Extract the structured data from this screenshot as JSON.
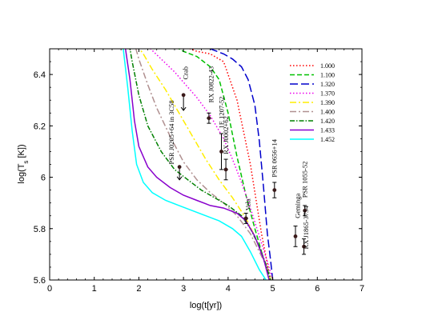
{
  "chart_data": {
    "type": "line",
    "xlabel": "log(t[yr])",
    "ylabel": "log(T_s [K])",
    "ylabel_main": "log(T",
    "ylabel_sub": "s",
    "ylabel_tail": " [K])",
    "xlim": [
      0,
      7
    ],
    "ylim": [
      5.6,
      6.5
    ],
    "xticks": [
      "0",
      "1",
      "2",
      "3",
      "4",
      "5",
      "6",
      "7"
    ],
    "yticks": [
      "5.6",
      "5.8",
      "6",
      "6.2",
      "6.4"
    ],
    "grid": false,
    "legend_position": "top-right",
    "series": [
      {
        "name": "1.000",
        "color": "#ff0000",
        "dash": "1.5,2.5",
        "x": [
          1.93,
          2.2,
          2.5,
          2.8,
          3.0,
          3.3,
          3.6,
          3.9,
          4.2,
          4.5,
          4.75,
          4.95
        ],
        "y": [
          6.58,
          6.56,
          6.54,
          6.52,
          6.51,
          6.49,
          6.48,
          6.45,
          6.3,
          6.05,
          5.78,
          5.6
        ]
      },
      {
        "name": "1.100",
        "color": "#00c000",
        "dash": "6,3",
        "x": [
          1.93,
          2.2,
          2.5,
          2.8,
          3.0,
          3.3,
          3.6,
          3.8,
          4.0,
          4.2,
          4.4,
          4.6,
          4.8,
          4.95
        ],
        "y": [
          6.57,
          6.55,
          6.53,
          6.51,
          6.49,
          6.47,
          6.43,
          6.38,
          6.25,
          6.08,
          5.93,
          5.8,
          5.68,
          5.6
        ]
      },
      {
        "name": "1.320",
        "color": "#0000cc",
        "dash": "10,4",
        "x": [
          1.93,
          2.4,
          2.8,
          3.2,
          3.6,
          3.9,
          4.1,
          4.3,
          4.45,
          4.6,
          4.7,
          4.8,
          4.88,
          4.95,
          5.0
        ],
        "y": [
          6.6,
          6.57,
          6.55,
          6.53,
          6.5,
          6.48,
          6.46,
          6.43,
          6.38,
          6.28,
          6.14,
          5.95,
          5.78,
          5.68,
          5.6
        ]
      },
      {
        "name": "1.370",
        "color": "#ee00ee",
        "dash": "1.5,2.5",
        "x": [
          1.93,
          2.2,
          2.5,
          2.8,
          3.0,
          3.3,
          3.6,
          3.9,
          4.1,
          4.3,
          4.5,
          4.7,
          4.9,
          5.0
        ],
        "y": [
          6.55,
          6.51,
          6.46,
          6.41,
          6.37,
          6.31,
          6.24,
          6.15,
          6.07,
          5.98,
          5.88,
          5.77,
          5.66,
          5.6
        ]
      },
      {
        "name": "1.390",
        "color": "#ffee00",
        "dash": "8,3,2,3",
        "x": [
          1.93,
          2.1,
          2.3,
          2.6,
          2.9,
          3.2,
          3.5,
          3.8,
          4.1,
          4.4,
          4.6,
          4.8,
          4.95
        ],
        "y": [
          6.52,
          6.48,
          6.42,
          6.34,
          6.25,
          6.16,
          6.07,
          5.99,
          5.92,
          5.84,
          5.77,
          5.68,
          5.6
        ]
      },
      {
        "name": "1.400",
        "color": "#b09090",
        "dash": "8,3,2,3",
        "x": [
          1.85,
          2.0,
          2.2,
          2.4,
          2.7,
          3.0,
          3.3,
          3.6,
          3.9,
          4.2,
          4.5,
          4.7,
          4.9,
          5.0
        ],
        "y": [
          6.55,
          6.46,
          6.36,
          6.27,
          6.16,
          6.06,
          5.99,
          5.94,
          5.9,
          5.85,
          5.78,
          5.71,
          5.64,
          5.6
        ]
      },
      {
        "name": "1.420",
        "color": "#008000",
        "dash": "6,2,1.5,2",
        "x": [
          1.75,
          1.85,
          2.0,
          2.2,
          2.5,
          2.8,
          3.1,
          3.4,
          3.7,
          4.0,
          4.3,
          4.5,
          4.7,
          4.85,
          4.95
        ],
        "y": [
          6.55,
          6.45,
          6.32,
          6.2,
          6.1,
          6.03,
          5.99,
          5.95,
          5.92,
          5.89,
          5.85,
          5.8,
          5.73,
          5.66,
          5.6
        ]
      },
      {
        "name": "1.433",
        "color": "#8800cc",
        "dash": "",
        "x": [
          1.7,
          1.8,
          1.9,
          2.0,
          2.2,
          2.4,
          2.7,
          3.0,
          3.3,
          3.6,
          3.9,
          4.2,
          4.4,
          4.6,
          4.8,
          4.92
        ],
        "y": [
          6.5,
          6.38,
          6.22,
          6.12,
          6.04,
          6.0,
          5.96,
          5.93,
          5.91,
          5.89,
          5.88,
          5.86,
          5.83,
          5.77,
          5.68,
          5.6
        ]
      },
      {
        "name": "1.452",
        "color": "#00ffff",
        "dash": "",
        "x": [
          1.65,
          1.75,
          1.85,
          1.95,
          2.1,
          2.3,
          2.6,
          2.9,
          3.2,
          3.5,
          3.8,
          4.1,
          4.3,
          4.5,
          4.7,
          4.85
        ],
        "y": [
          6.5,
          6.35,
          6.18,
          6.05,
          5.98,
          5.94,
          5.91,
          5.89,
          5.87,
          5.85,
          5.83,
          5.8,
          5.77,
          5.71,
          5.64,
          5.6
        ]
      }
    ],
    "observations": [
      {
        "label": "Crab",
        "x": 3.0,
        "y": 6.32,
        "upper_limit": true,
        "xerr": 0,
        "yerr_low": 0.06,
        "yerr_high": 0,
        "label_dx": 0.1,
        "label_dy": 0.06
      },
      {
        "label": "RX J0822-43",
        "x": 3.57,
        "y": 6.23,
        "upper_limit": false,
        "xerr": 0.05,
        "yerr_low": 0.02,
        "yerr_high": 0.02,
        "label_dx": 0.1,
        "label_dy": 0.06
      },
      {
        "label": "1E 1207-52",
        "x": 3.85,
        "y": 6.1,
        "upper_limit": false,
        "xerr": 0.0,
        "yerr_low": 0.07,
        "yerr_high": 0.07,
        "label_dx": 0.05,
        "label_dy": 0.09
      },
      {
        "label": "RX J0002+62",
        "x": 3.95,
        "y": 6.03,
        "upper_limit": false,
        "xerr": 0.05,
        "yerr_low": 0.04,
        "yerr_high": 0.04,
        "label_dx": 0.05,
        "label_dy": 0.06
      },
      {
        "label": "PSR J0205+64 in 3C58",
        "x": 2.91,
        "y": 6.04,
        "upper_limit": true,
        "xerr": 0,
        "yerr_low": 0.05,
        "yerr_high": 0,
        "label_dx": -0.13,
        "label_dy": 0.01
      },
      {
        "label": "Vela",
        "x": 4.4,
        "y": 5.84,
        "upper_limit": false,
        "xerr": 0.05,
        "yerr_low": 0.02,
        "yerr_high": 0.02,
        "label_dx": 0.1,
        "label_dy": 0.03
      },
      {
        "label": "PSR 0656+14",
        "x": 5.04,
        "y": 5.95,
        "upper_limit": false,
        "xerr": 0,
        "yerr_low": 0.03,
        "yerr_high": 0.03,
        "label_dx": 0.05,
        "label_dy": 0.05
      },
      {
        "label": "Geminga",
        "x": 5.51,
        "y": 5.77,
        "upper_limit": false,
        "xerr": 0,
        "yerr_low": 0.04,
        "yerr_high": 0.04,
        "label_dx": 0.1,
        "label_dy": 0.07
      },
      {
        "label": "PSR 1055-52",
        "x": 5.72,
        "y": 5.87,
        "upper_limit": false,
        "xerr": 0,
        "yerr_low": 0.02,
        "yerr_high": 0.02,
        "label_dx": 0.05,
        "label_dy": 0.05
      },
      {
        "label": "RX J1865-3754",
        "x": 5.7,
        "y": 5.73,
        "upper_limit": false,
        "xerr": 0,
        "yerr_low": 0.03,
        "yerr_high": 0.03,
        "label_dx": 0.1,
        "label_dy": -0.01
      }
    ]
  }
}
